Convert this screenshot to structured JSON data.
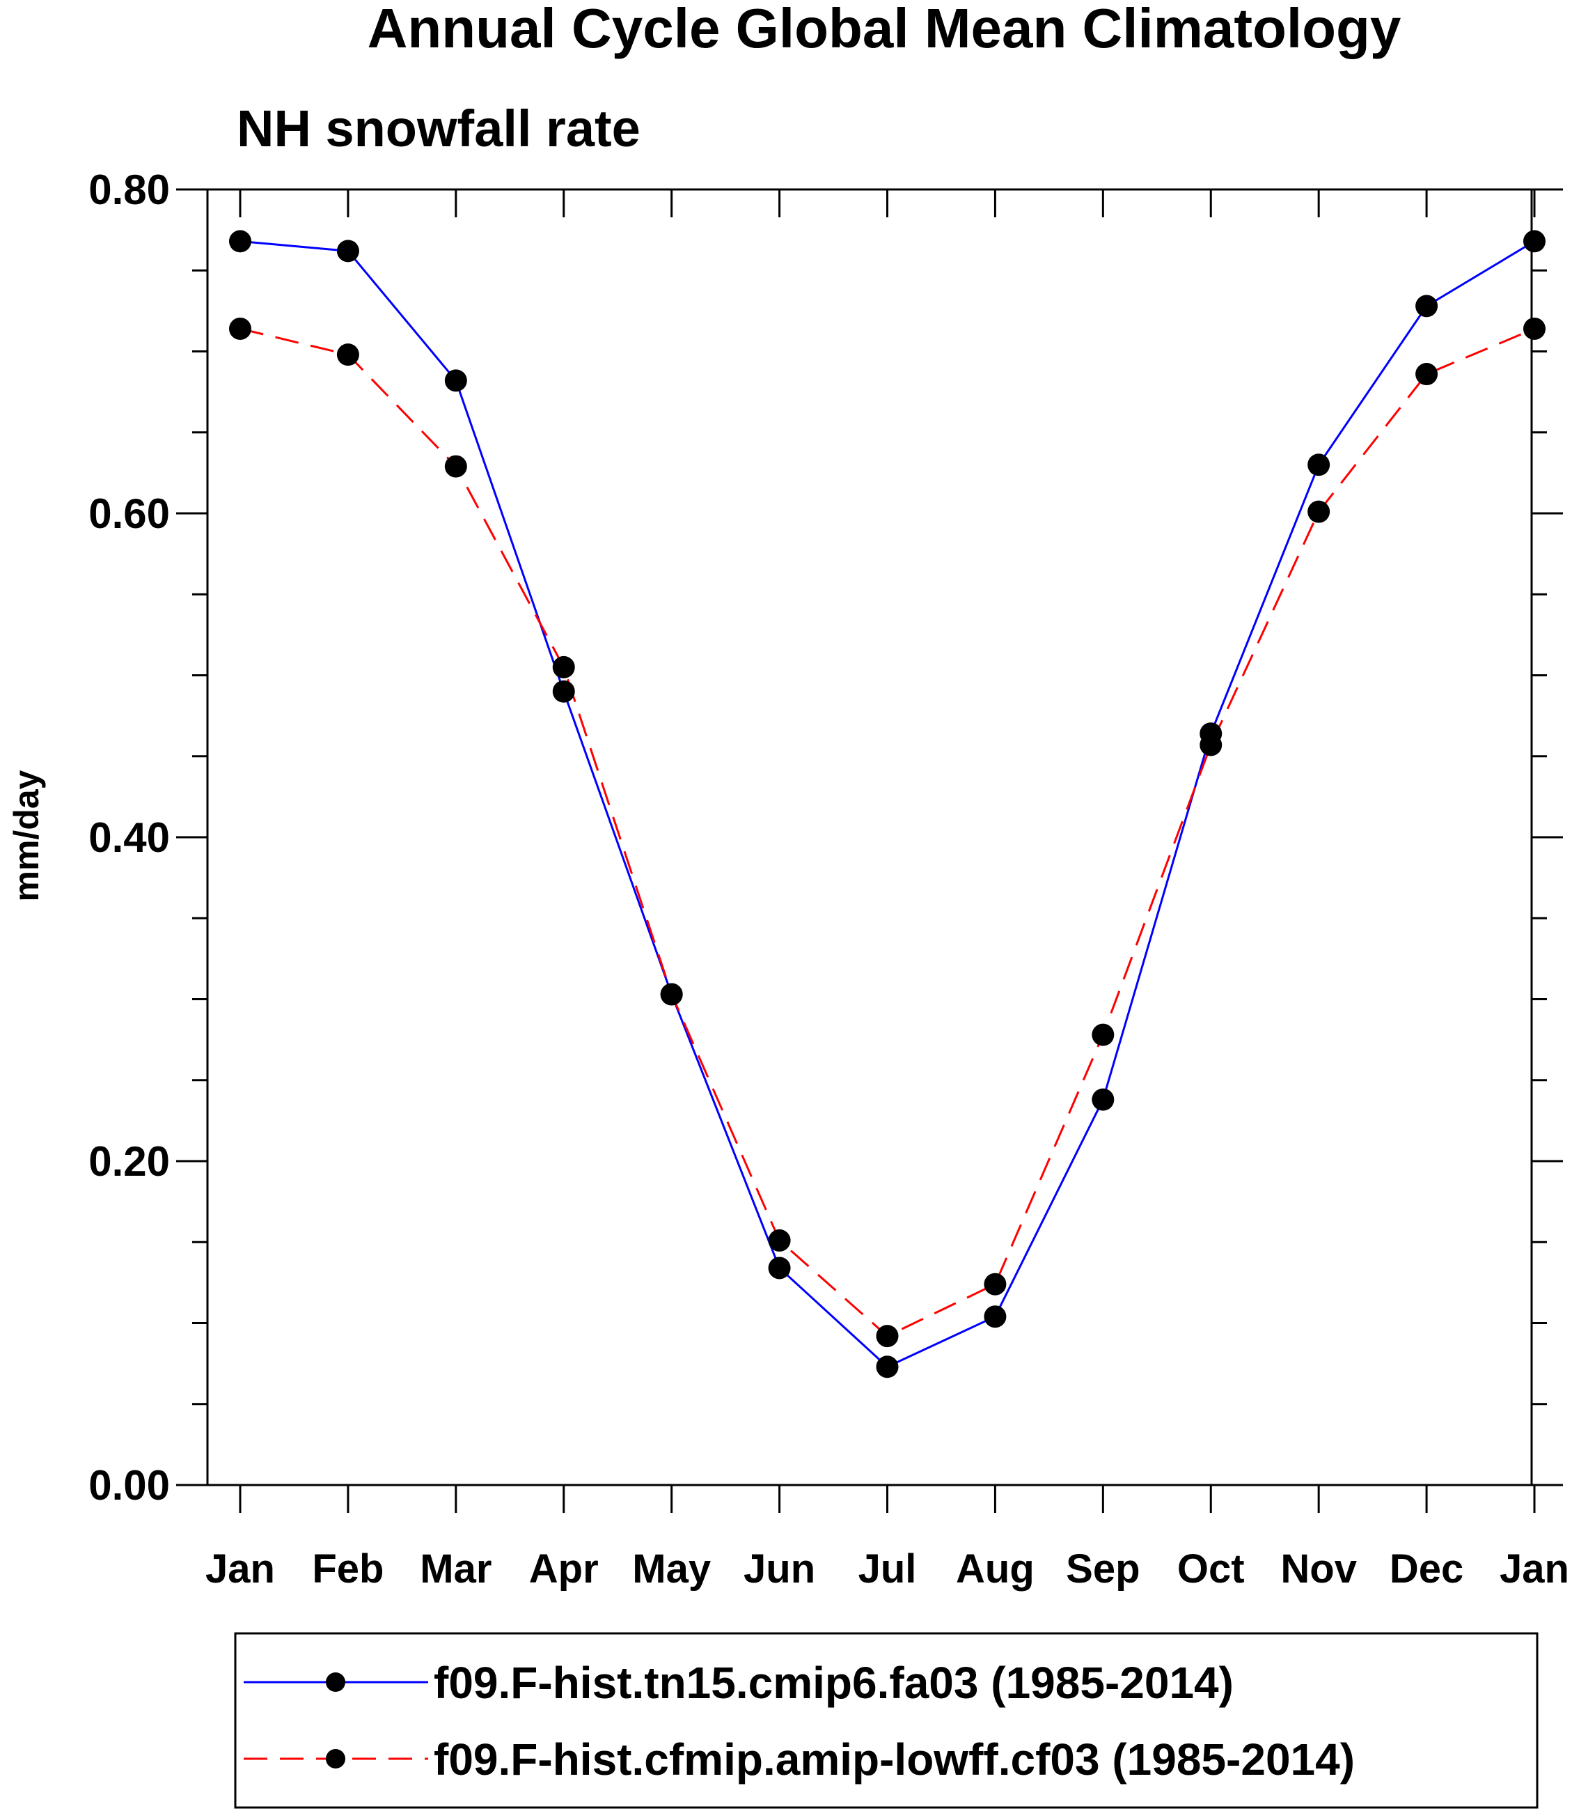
{
  "chart_data": {
    "type": "line",
    "title": "Annual Cycle Global Mean Climatology",
    "subtitle": "NH snowfall rate",
    "xlabel": "",
    "ylabel": "mm/day",
    "categories": [
      "Jan",
      "Feb",
      "Mar",
      "Apr",
      "May",
      "Jun",
      "Jul",
      "Aug",
      "Sep",
      "Oct",
      "Nov",
      "Dec",
      "Jan"
    ],
    "yticks": [
      "0.00",
      "0.20",
      "0.40",
      "0.60",
      "0.80"
    ],
    "ylim": [
      0,
      0.8
    ],
    "grid": false,
    "series": [
      {
        "name": "f09.F-hist.tn15.cmip6.fa03 (1985-2014)",
        "color": "#0000ff",
        "line_style": "solid",
        "marker": "filled-circle",
        "values": [
          0.768,
          0.762,
          0.682,
          0.49,
          0.303,
          0.134,
          0.073,
          0.104,
          0.238,
          0.464,
          0.63,
          0.728,
          0.768
        ]
      },
      {
        "name": "f09.F-hist.cfmip.amip-lowff.cf03 (1985-2014)",
        "color": "#ff0000",
        "line_style": "dashed",
        "marker": "filled-circle",
        "values": [
          0.714,
          0.698,
          0.629,
          0.505,
          0.303,
          0.151,
          0.092,
          0.124,
          0.278,
          0.457,
          0.601,
          0.686,
          0.714
        ]
      }
    ],
    "legend_position": "bottom"
  }
}
